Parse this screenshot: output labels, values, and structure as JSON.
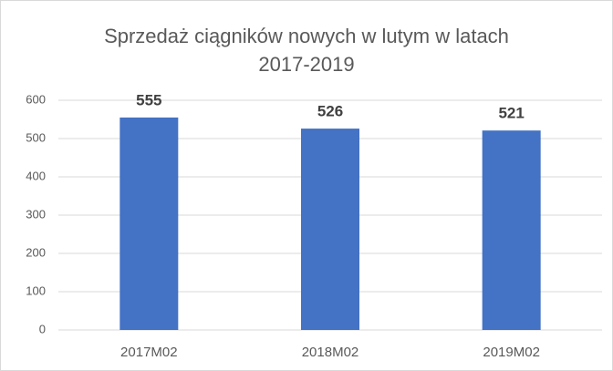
{
  "chart_data": {
    "type": "bar",
    "title": "Sprzedaż ciągników nowych w lutym w latach 2017-2019",
    "categories": [
      "2017M02",
      "2018M02",
      "2019M02"
    ],
    "values": [
      555,
      526,
      521
    ],
    "color": "#4472c4",
    "ylim": [
      0,
      600
    ],
    "yticks": [
      0,
      100,
      200,
      300,
      400,
      500,
      600
    ],
    "grid": true,
    "data_labels": true
  }
}
